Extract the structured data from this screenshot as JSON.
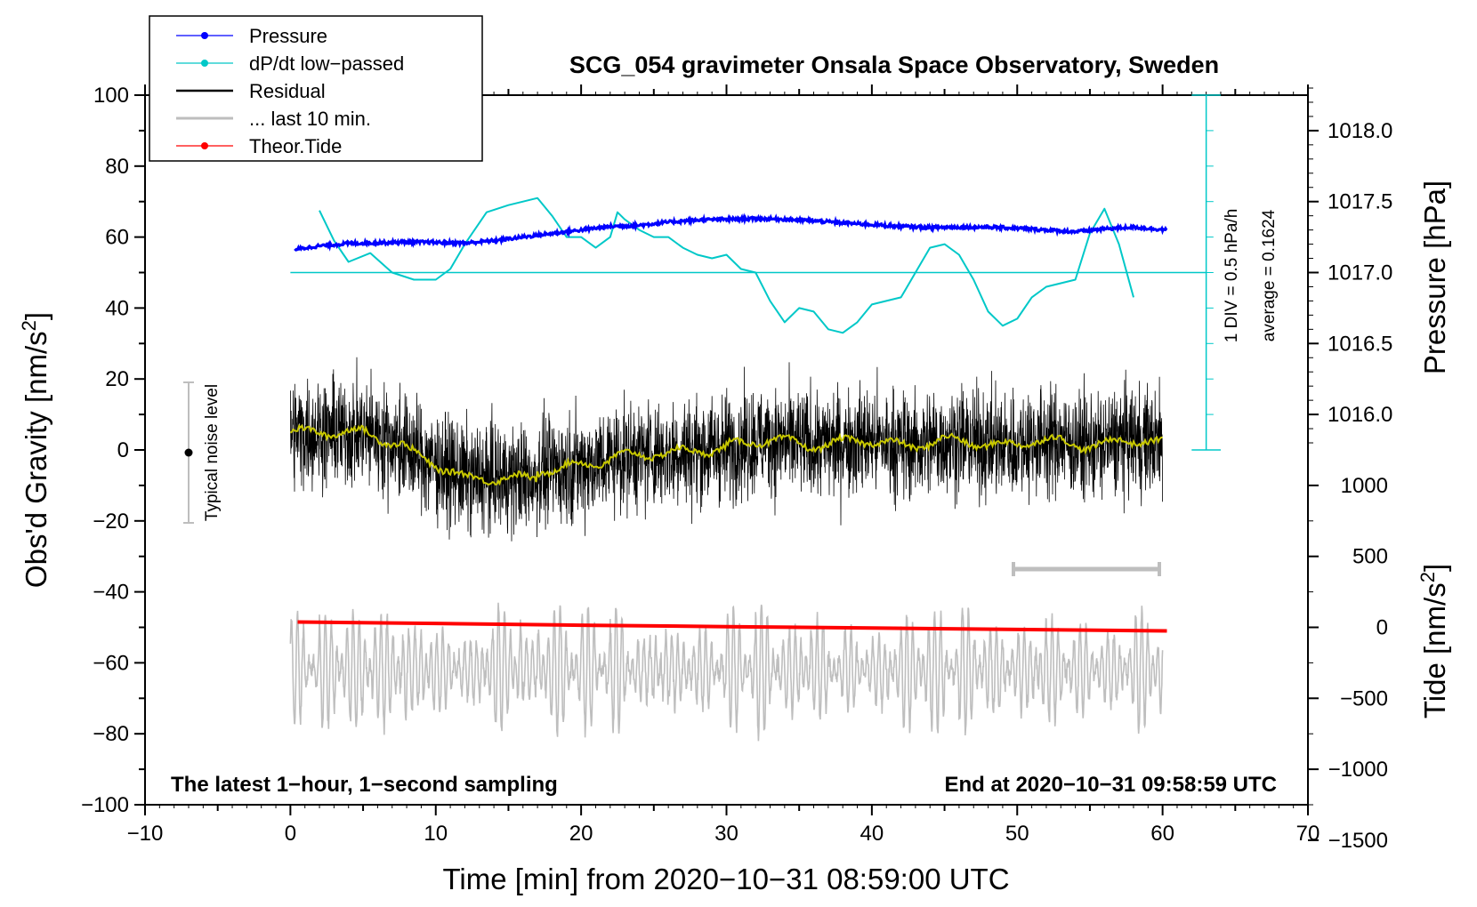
{
  "chart_data": {
    "type": "line",
    "title": "SCG_054 gravimeter Onsala Space Observatory, Sweden",
    "xlabel": "Time [min] from 2020−10−31 08:59:00 UTC",
    "ylabel_left": "Obs'd Gravity [nm/s",
    "ylabel_left_sup": "2",
    "ylabel_left_end": "]",
    "ylabel_right_top": "Pressure [hPa]",
    "ylabel_right_bottom": "Tide [nm/s",
    "ylabel_right_bottom_sup": "2",
    "ylabel_right_bottom_end": "]",
    "xlim": [
      -10,
      70
    ],
    "ylim": [
      -100,
      100
    ],
    "x_ticks": [
      "−10",
      "0",
      "10",
      "20",
      "30",
      "40",
      "50",
      "60",
      "70"
    ],
    "y_ticks": [
      "−100",
      "−80",
      "−60",
      "−40",
      "−20",
      "0",
      "20",
      "40",
      "60",
      "80",
      "100"
    ],
    "pressure_axis": {
      "ticks": [
        "1016.0",
        "1016.5",
        "1017.0",
        "1017.5",
        "1018.0"
      ],
      "tick_values": [
        1016.0,
        1016.5,
        1017.0,
        1017.5,
        1018.0
      ],
      "gravity_at_1017": 50,
      "gravity_per_hpa": 40
    },
    "tide_axis": {
      "ticks": [
        "−1500",
        "−1000",
        "−500",
        "0",
        "500",
        "1000"
      ],
      "tick_values": [
        -1500,
        -1000,
        -500,
        0,
        500,
        1000
      ],
      "gravity_at_zero": -50,
      "gravity_per_unit": 0.04
    },
    "legend": [
      {
        "label": "Pressure",
        "color": "#0000ff",
        "marker": true
      },
      {
        "label": "dP/dt low−passed",
        "color": "#00c8c8",
        "marker": true
      },
      {
        "label": "Residual",
        "color": "#000000",
        "marker": false
      },
      {
        "label": "... last 10 min.",
        "color": "#bebebe",
        "marker": false
      },
      {
        "label": "Theor.Tide",
        "color": "#ff0000",
        "marker": true
      }
    ],
    "annotations": {
      "left_note": "The latest 1−hour, 1−second sampling",
      "right_note": "End at 2020−10−31 09:58:59 UTC",
      "noise_label": "Typical noise level",
      "div_label": "1 DIV = 0.5 hPa/h",
      "average_label": "average = 0.1624"
    },
    "colors": {
      "pressure": "#0000ff",
      "dpdt": "#00c8c8",
      "residual": "#000000",
      "residual_smooth": "#c8c800",
      "last10": "#bebebe",
      "tide": "#ff0000",
      "noise_bar": "#bebebe"
    },
    "series": [
      {
        "name": "Pressure",
        "x": [
          0.3,
          2,
          4,
          6,
          8,
          10,
          12,
          14,
          16,
          18,
          20,
          22,
          24,
          26,
          28,
          30,
          32,
          34,
          36,
          38,
          40,
          42,
          44,
          46,
          48,
          50,
          52,
          54,
          56,
          58,
          60.3
        ],
        "y": [
          56.5,
          57.5,
          58.2,
          58.4,
          58.6,
          58.5,
          58.3,
          59,
          60,
          61,
          62,
          63,
          63.3,
          64.2,
          64.8,
          65,
          65.2,
          65,
          64.6,
          64,
          63.5,
          63,
          62.7,
          62.8,
          62.8,
          62.5,
          62,
          61.5,
          62.3,
          62.8,
          62
        ]
      },
      {
        "name": "dP/dt low-passed",
        "x": [
          2,
          3,
          4,
          5.5,
          7,
          8.5,
          10,
          11,
          12,
          13.5,
          15,
          16,
          17,
          18,
          19,
          20,
          21,
          22,
          22.5,
          23,
          24,
          25,
          26,
          27,
          28,
          29,
          30,
          31,
          32,
          33,
          34,
          35,
          36,
          37,
          38,
          39,
          40,
          41,
          42,
          43,
          44,
          45,
          46,
          47,
          48,
          49,
          50,
          51,
          52,
          53,
          54,
          55,
          56,
          57,
          58
        ],
        "y": [
          67.5,
          59,
          53,
          55.5,
          50,
          48,
          48,
          51,
          58,
          67,
          69,
          70,
          71,
          66,
          60,
          60,
          57,
          60,
          67,
          65,
          62,
          60,
          60,
          57,
          55,
          54,
          55,
          51,
          50,
          42,
          36,
          40,
          39,
          34,
          33,
          36,
          41,
          42,
          43,
          50,
          57,
          58,
          55,
          48,
          39,
          35,
          37,
          43,
          46,
          47,
          48,
          61,
          68,
          58,
          43
        ]
      },
      {
        "name": "Theor.Tide",
        "x": [
          0.5,
          10,
          20,
          30,
          40,
          50,
          60.3
        ],
        "y": [
          -48.5,
          -48.9,
          -49.4,
          -49.8,
          -50.2,
          -50.6,
          -51
        ]
      }
    ]
  }
}
